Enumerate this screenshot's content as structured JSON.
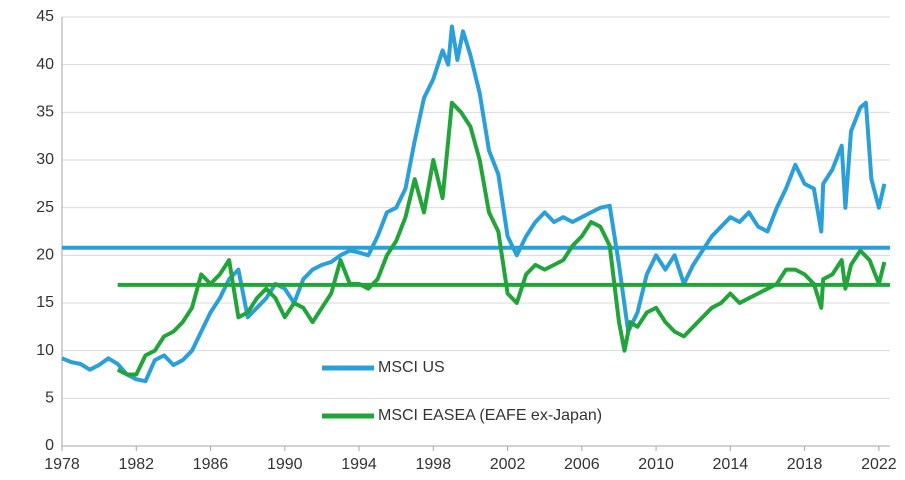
{
  "chart_data": {
    "type": "line",
    "xlim": [
      1978,
      2022.6
    ],
    "xticks": [
      1978,
      1982,
      1986,
      1990,
      1994,
      1998,
      2002,
      2006,
      2010,
      2014,
      2018,
      2022
    ],
    "ylim": [
      0,
      45
    ],
    "yticks": [
      0,
      5,
      10,
      15,
      20,
      25,
      30,
      35,
      40,
      45
    ],
    "grid": true,
    "legend": "lower center",
    "series": [
      {
        "name": "MSCI US",
        "color": "#2a9fd8",
        "average": 20.8,
        "x": [
          1978,
          1978.5,
          1979,
          1979.5,
          1980,
          1980.5,
          1981,
          1981.5,
          1982,
          1982.5,
          1983,
          1983.5,
          1984,
          1984.5,
          1985,
          1985.5,
          1986,
          1986.5,
          1987,
          1987.5,
          1988,
          1988.5,
          1989,
          1989.5,
          1990,
          1990.5,
          1991,
          1991.5,
          1992,
          1992.5,
          1993,
          1993.5,
          1994,
          1994.5,
          1995,
          1995.5,
          1996,
          1996.5,
          1997,
          1997.5,
          1998,
          1998.5,
          1998.8,
          1999,
          1999.3,
          1999.6,
          2000,
          2000.5,
          2001,
          2001.5,
          2002,
          2002.5,
          2003,
          2003.5,
          2004,
          2004.5,
          2005,
          2005.5,
          2006,
          2006.5,
          2007,
          2007.5,
          2008,
          2008.5,
          2009,
          2009.5,
          2010,
          2010.5,
          2011,
          2011.5,
          2012,
          2012.5,
          2013,
          2013.5,
          2014,
          2014.5,
          2015,
          2015.5,
          2016,
          2016.5,
          2017,
          2017.5,
          2018,
          2018.5,
          2018.9,
          2019,
          2019.5,
          2020,
          2020.2,
          2020.5,
          2021,
          2021.3,
          2021.6,
          2022,
          2022.3
        ],
        "values": [
          9.2,
          8.8,
          8.6,
          8.0,
          8.5,
          9.2,
          8.6,
          7.5,
          7.0,
          6.8,
          9.0,
          9.5,
          8.5,
          9.0,
          10.0,
          12.0,
          14.0,
          15.5,
          17.5,
          18.5,
          13.5,
          14.5,
          15.5,
          17.0,
          16.5,
          15.0,
          17.5,
          18.5,
          19.0,
          19.3,
          20.0,
          20.5,
          20.3,
          20.0,
          22.0,
          24.5,
          25.0,
          27.0,
          32.0,
          36.5,
          38.5,
          41.5,
          40.0,
          44.0,
          40.5,
          43.5,
          41.0,
          37.0,
          31.0,
          28.5,
          22.0,
          20.0,
          22.0,
          23.5,
          24.5,
          23.5,
          24.0,
          23.5,
          24.0,
          24.5,
          25.0,
          25.2,
          19.0,
          12.0,
          14.0,
          18.0,
          20.0,
          18.5,
          20.0,
          17.0,
          19.0,
          20.5,
          22.0,
          23.0,
          24.0,
          23.5,
          24.5,
          23.0,
          22.5,
          25.0,
          27.0,
          29.5,
          27.5,
          27.0,
          22.5,
          27.5,
          29.0,
          31.5,
          25.0,
          33.0,
          35.5,
          36.0,
          28.0,
          25.0,
          27.5
        ]
      },
      {
        "name": "MSCI EASEA (EAFE ex-Japan)",
        "color": "#22a43a",
        "average": 16.9,
        "x": [
          1981,
          1981.5,
          1982,
          1982.5,
          1983,
          1983.5,
          1984,
          1984.5,
          1985,
          1985.5,
          1986,
          1986.5,
          1987,
          1987.5,
          1988,
          1988.5,
          1989,
          1989.5,
          1990,
          1990.5,
          1991,
          1991.5,
          1992,
          1992.5,
          1993,
          1993.5,
          1994,
          1994.5,
          1995,
          1995.5,
          1996,
          1996.5,
          1997,
          1997.5,
          1998,
          1998.5,
          1999,
          1999.5,
          2000,
          2000.5,
          2001,
          2001.5,
          2002,
          2002.5,
          2003,
          2003.5,
          2004,
          2004.5,
          2005,
          2005.5,
          2006,
          2006.5,
          2007,
          2007.5,
          2008,
          2008.3,
          2008.6,
          2009,
          2009.5,
          2010,
          2010.5,
          2011,
          2011.5,
          2012,
          2012.5,
          2013,
          2013.5,
          2014,
          2014.5,
          2015,
          2015.5,
          2016,
          2016.5,
          2017,
          2017.5,
          2018,
          2018.5,
          2018.9,
          2019,
          2019.5,
          2020,
          2020.2,
          2020.5,
          2021,
          2021.5,
          2022,
          2022.3
        ],
        "values": [
          8.0,
          7.5,
          7.5,
          9.5,
          10.0,
          11.5,
          12.0,
          13.0,
          14.5,
          18.0,
          17.0,
          18.0,
          19.5,
          13.5,
          14.0,
          15.5,
          16.5,
          15.5,
          13.5,
          15.0,
          14.5,
          13.0,
          14.5,
          16.0,
          19.5,
          17.0,
          17.0,
          16.5,
          17.5,
          20.0,
          21.5,
          24.0,
          28.0,
          24.5,
          30.0,
          26.0,
          36.0,
          35.0,
          33.5,
          30.0,
          24.5,
          22.5,
          16.0,
          15.0,
          18.0,
          19.0,
          18.5,
          19.0,
          19.5,
          21.0,
          22.0,
          23.5,
          23.0,
          21.0,
          13.0,
          10.0,
          13.0,
          12.5,
          14.0,
          14.5,
          13.0,
          12.0,
          11.5,
          12.5,
          13.5,
          14.5,
          15.0,
          16.0,
          15.0,
          15.5,
          16.0,
          16.5,
          17.0,
          18.5,
          18.5,
          18.0,
          17.0,
          14.5,
          17.5,
          18.0,
          19.5,
          16.5,
          19.0,
          20.5,
          19.5,
          17.0,
          19.3
        ]
      }
    ]
  }
}
